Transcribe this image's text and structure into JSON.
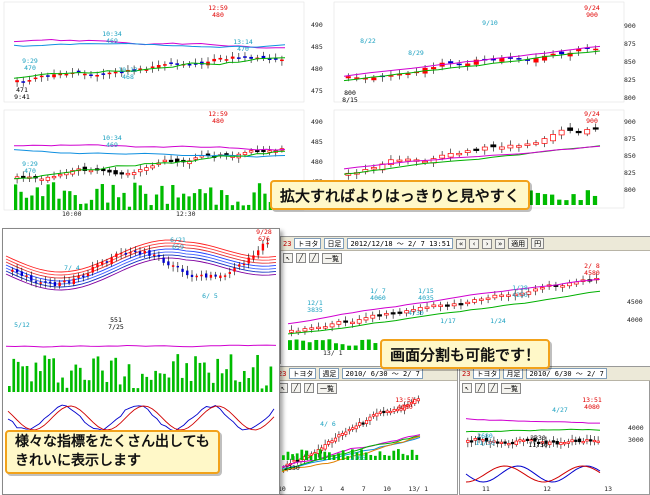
{
  "callouts": {
    "zoom": "拡大すればよりはっきりと見やすく",
    "split": "画面分割も可能です！",
    "indicators": [
      "様々な指標をたくさん出しても",
      "きれいに表示します"
    ]
  },
  "colors": {
    "candle_up": "#ff0000",
    "candle_down": "#0000cc",
    "volume": "#00bb00",
    "callout_border": "#f2a21a",
    "callout_fill": "#fff8c8"
  },
  "panel_a_top": {
    "labels": {
      "high": "12:59\n480",
      "mid": "10:34\n469",
      "low1": "9:29\n470",
      "low2": "10:13\n468",
      "right": "13:14\n470",
      "min": "471\n9:41"
    }
  },
  "panel_a_bottom": {
    "labels": {
      "t1": "10:00",
      "t2": "12:30",
      "high": "12:59\n480",
      "mid": "10:34\n469",
      "low": "9:29\n470"
    }
  },
  "panel_b_top": {
    "yticks": [
      "490",
      "485",
      "480",
      "475"
    ],
    "right_ticks": [
      "900",
      "875",
      "850",
      "825",
      "800"
    ],
    "labels": {
      "top": "9/24\n900",
      "a": "8/22",
      "b": "8/29",
      "c": "9/10",
      "min": "800\n8/15"
    }
  },
  "panel_b_bottom": {
    "yticks": [
      "490",
      "485",
      "480",
      "475"
    ],
    "right_ticks": [
      "900",
      "875",
      "850",
      "825",
      "800"
    ],
    "labels": {
      "top": "9/24\n900"
    }
  },
  "main_window": {
    "code": "23",
    "name": "トヨタ",
    "period": "日足",
    "range": "2012/12/18 ～ 2/ 7 13:51",
    "btn_apply": "適用",
    "btn_tsuki": "円",
    "btn_ichiran": "一覧",
    "yticks": [
      "4500",
      "4000"
    ],
    "xtick": "13/ 1",
    "labels": {
      "top": "2/ 8\n4580",
      "a": "12/1\n3835",
      "b": "1/ 7\n4060",
      "c": "1/15\n4035",
      "d": "1/28\n4250",
      "e": "4/30",
      "f": "1/17",
      "g": "1/24"
    }
  },
  "left_window": {
    "labels": {
      "top": "9/28\n676",
      "a": "6/21\n659",
      "b": "7/ 4",
      "c": "6/ 5",
      "low": "551\n7/25",
      "d": "5/12"
    }
  },
  "sub_window_left": {
    "code": "23",
    "name": "トヨタ",
    "period": "週足",
    "range": "2010/ 6/30 ～ 2/ 7",
    "btn_ichiran": "一覧",
    "xticks": [
      "10",
      "12/ 1",
      "4",
      "7",
      "10",
      "13/ 1"
    ],
    "labels": {
      "top": "13:51\n4080",
      "a": "4/ 6",
      "b": "2330",
      "c": "2705"
    }
  },
  "sub_window_right": {
    "code": "23",
    "name": "トヨタ",
    "period": "月足",
    "range": "2010/ 6/30 ～ 2/ 7",
    "btn_ichiran": "一覧",
    "yticks": [
      "4000",
      "3000"
    ],
    "xticks": [
      "11",
      "12",
      "13"
    ],
    "labels": {
      "top": "13:51\n4080",
      "a": "4/27",
      "b": "2330\n11/30",
      "c": "2680\n11/30"
    }
  }
}
